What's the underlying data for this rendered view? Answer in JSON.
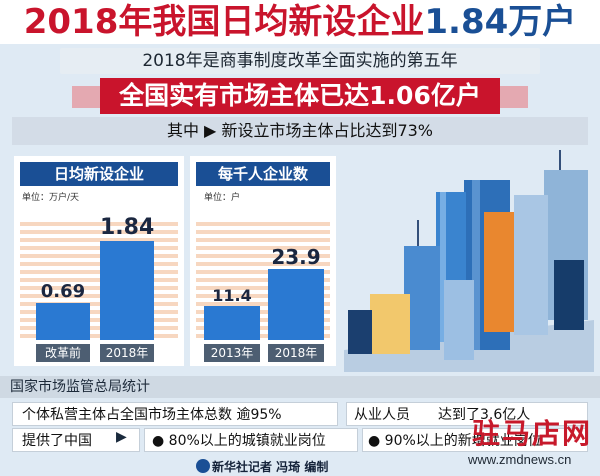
{
  "title": "2018年我国日均新设企业1.84万户",
  "subtitle": "2018年是商事制度改革全面实施的第五年",
  "banner": "全国实有市场主体已达1.06亿户",
  "percent_line": "其中 ▶ 新设立市场主体占比达到73%",
  "chart_data": [
    {
      "type": "bar",
      "title": "日均新设企业",
      "unit": "单位：万户/天",
      "categories": [
        "改革前",
        "2018年"
      ],
      "values": [
        0.69,
        1.84
      ],
      "value_labels": [
        "0.69",
        "1.84"
      ],
      "ylim": [
        0,
        2.2
      ]
    },
    {
      "type": "bar",
      "title": "每千人企业数",
      "unit": "单位：户",
      "categories": [
        "2013年",
        "2018年"
      ],
      "values": [
        11.4,
        23.9
      ],
      "value_labels": [
        "11.4",
        "23.9"
      ],
      "ylim": [
        0,
        40
      ]
    }
  ],
  "source": "国家市场监管总局统计",
  "rows": {
    "r1_left": "个体私营主体占全国市场主体总数 逾95%",
    "r1_right": "从业人员　　达到了3.6亿人",
    "r2_a": "提供了中国",
    "r2_b": "● 80%以上的城镇就业岗位",
    "r2_c": "● 90%以上的新增就业岗位"
  },
  "credit": "新华社记者 冯琦 编制",
  "watermark": {
    "name": "驻马店网",
    "url": "www.zmdnews.cn"
  },
  "colors": {
    "banner": "#c9142c",
    "panel_head": "#1a4f95",
    "bar": "#2a79d2",
    "title_red": "#c9142c",
    "title_blue": "#1a4f95"
  }
}
